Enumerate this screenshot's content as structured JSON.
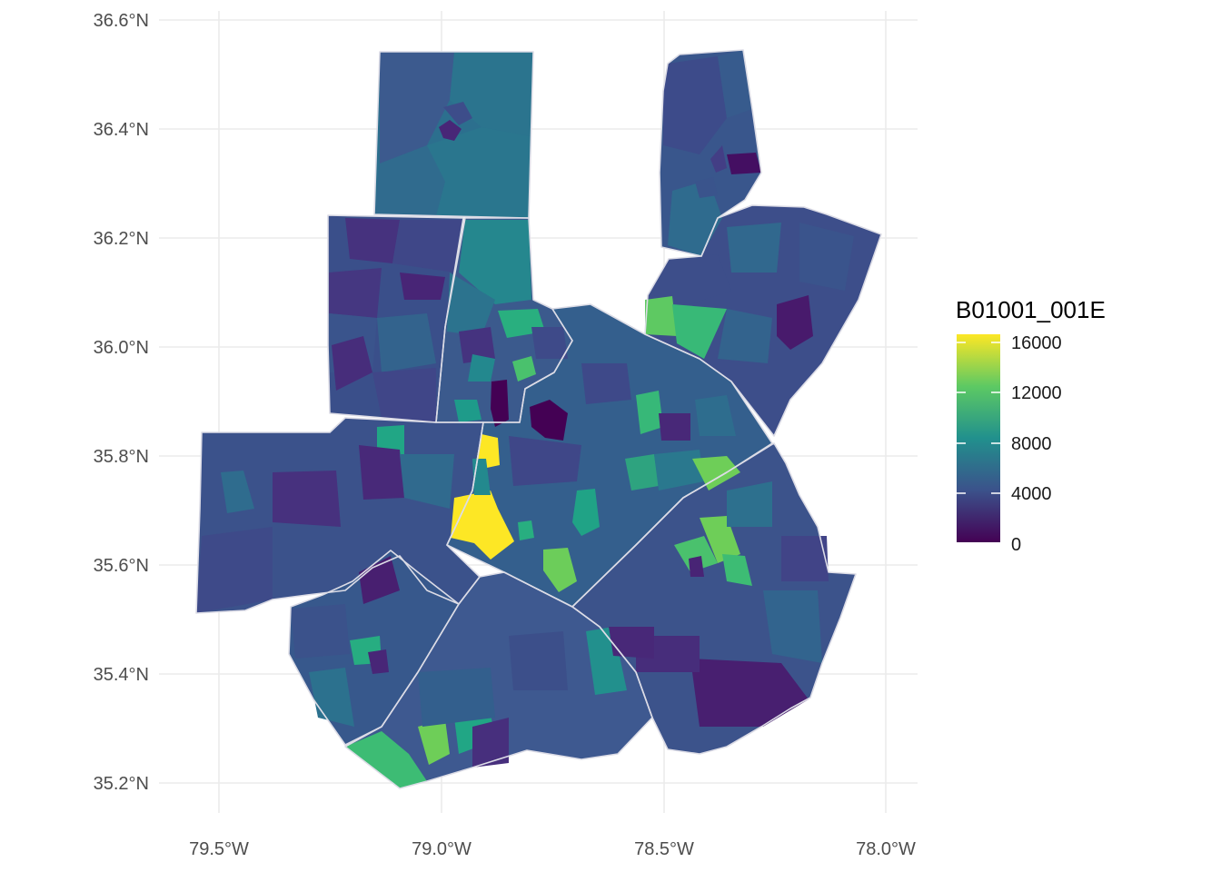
{
  "map": {
    "x_ticks": [
      "79.5°W",
      "79.0°W",
      "78.5°W",
      "78.0°W"
    ],
    "y_ticks": [
      "36.6°N",
      "36.4°N",
      "36.2°N",
      "36.0°N",
      "35.8°N",
      "35.6°N",
      "35.4°N",
      "35.2°N"
    ],
    "x_range_deg": [
      -79.64,
      -77.94
    ],
    "y_range_deg": [
      35.14,
      36.64
    ],
    "grid": true,
    "fill_variable": "B01001_001E"
  },
  "legend": {
    "title": "B01001_001E",
    "labels": [
      "16000",
      "12000",
      "8000",
      "4000",
      "0"
    ],
    "range": [
      0,
      16500
    ],
    "placement": "right",
    "colors": [
      "#440154",
      "#3b528b",
      "#21908d",
      "#5dc963",
      "#fde725"
    ]
  },
  "colors": {
    "boundary": "#dcdce6",
    "grid": "#ebebeb",
    "tick_text": "#4d4d4d"
  }
}
